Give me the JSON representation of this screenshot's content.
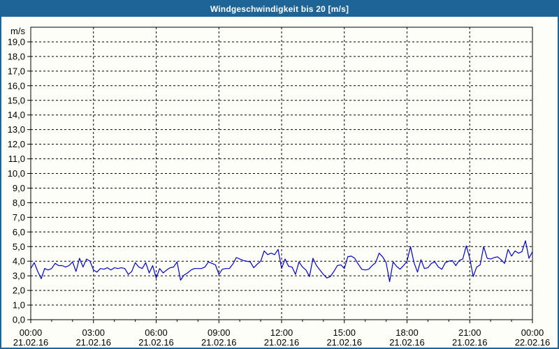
{
  "window": {
    "title": "Windgeschwindigkeit bis 20 [m/s]"
  },
  "colors": {
    "titlebar_bg": "#1e6496",
    "frame_border": "#1e6496",
    "page_bg": "#fcfef7",
    "grid": "#000000",
    "axis": "#000000",
    "text": "#000000",
    "title_text": "#ffffff",
    "line": "#0000cc"
  },
  "chart_data": {
    "type": "line",
    "title": "Windgeschwindigkeit bis 20 [m/s]",
    "ylabel": "m/s",
    "ylim": [
      0,
      20
    ],
    "ytick_step": 1,
    "ytick_labels": [
      "0,0",
      "1,0",
      "2,0",
      "3,0",
      "4,0",
      "5,0",
      "6,0",
      "7,0",
      "8,0",
      "9,0",
      "10,0",
      "11,0",
      "12,0",
      "13,0",
      "14,0",
      "15,0",
      "16,0",
      "17,0",
      "18,0",
      "19,0"
    ],
    "grid": "dashed",
    "legend": "none",
    "x_range_hours": [
      0,
      24
    ],
    "x_major_step_hours": 3,
    "x_minor_step_hours": 1,
    "xticks": [
      {
        "time": "00:00",
        "date": "21.02.16"
      },
      {
        "time": "03:00",
        "date": "21.02.16"
      },
      {
        "time": "06:00",
        "date": "21.02.16"
      },
      {
        "time": "09:00",
        "date": "21.02.16"
      },
      {
        "time": "12:00",
        "date": "21.02.16"
      },
      {
        "time": "15:00",
        "date": "21.02.16"
      },
      {
        "time": "18:00",
        "date": "21.02.16"
      },
      {
        "time": "21:00",
        "date": "21.02.16"
      },
      {
        "time": "00:00",
        "date": "22.02.16"
      }
    ],
    "series": [
      {
        "name": "Windgeschwindigkeit",
        "unit": "m/s",
        "sample_interval_min": 10,
        "color": "#0000cc",
        "values": [
          3.5,
          3.9,
          3.3,
          2.8,
          3.5,
          3.4,
          3.5,
          3.85,
          3.7,
          3.7,
          3.6,
          3.7,
          3.95,
          3.3,
          4.2,
          3.6,
          4.15,
          4.0,
          3.4,
          3.25,
          3.5,
          3.45,
          3.55,
          3.4,
          3.55,
          3.5,
          3.55,
          3.5,
          3.1,
          3.3,
          3.9,
          3.6,
          3.5,
          3.9,
          3.2,
          3.7,
          2.85,
          3.5,
          3.2,
          3.4,
          3.55,
          3.6,
          3.95,
          2.7,
          3.05,
          3.2,
          3.4,
          3.5,
          3.5,
          3.5,
          3.6,
          3.95,
          3.85,
          3.75,
          3.1,
          3.45,
          3.5,
          3.5,
          3.8,
          4.25,
          4.15,
          4.05,
          4.0,
          3.95,
          3.55,
          3.8,
          4.0,
          4.7,
          4.45,
          4.55,
          4.45,
          4.8,
          3.5,
          4.15,
          3.65,
          3.6,
          3.1,
          3.95,
          3.6,
          3.4,
          2.95,
          4.2,
          3.7,
          3.4,
          3.1,
          2.85,
          2.95,
          3.3,
          3.7,
          3.75,
          3.5,
          4.3,
          4.35,
          4.2,
          3.8,
          3.45,
          3.4,
          3.45,
          3.7,
          3.9,
          4.55,
          4.3,
          3.9,
          2.6,
          3.95,
          3.65,
          3.45,
          3.7,
          4.0,
          5.0,
          3.9,
          3.25,
          4.1,
          3.5,
          3.55,
          3.85,
          3.95,
          3.6,
          3.45,
          3.9,
          4.0,
          4.05,
          3.7,
          4.05,
          4.15,
          5.05,
          4.2,
          2.95,
          3.6,
          3.75,
          5.0,
          4.2,
          4.15,
          4.25,
          4.3,
          4.1,
          3.85,
          4.8,
          4.35,
          4.7,
          4.55,
          4.65,
          5.4,
          4.2,
          4.65
        ]
      }
    ]
  }
}
